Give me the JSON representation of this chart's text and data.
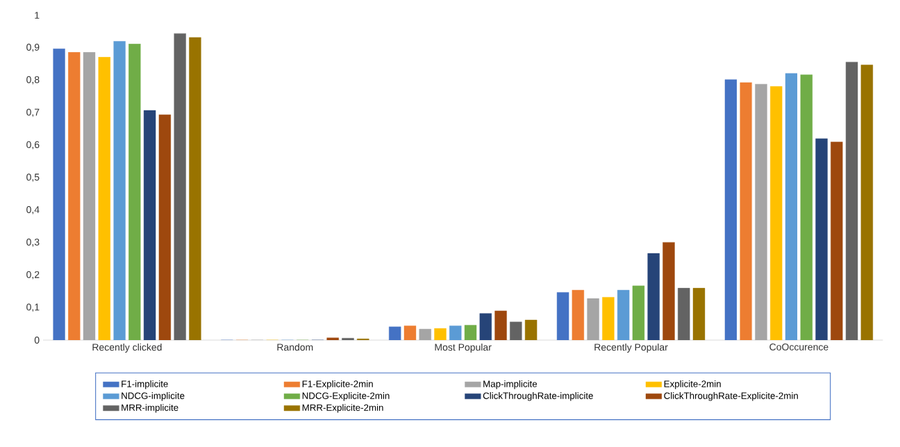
{
  "chart_data": {
    "type": "bar",
    "categories": [
      "Recently clicked",
      "Random",
      "Most Popular",
      "Recently Popular",
      "CoOccurence"
    ],
    "series": [
      {
        "name": "F1-implicite",
        "color": "#4472c4",
        "values": [
          0.897,
          0,
          0.041,
          0.147,
          0.802
        ]
      },
      {
        "name": "F1-Explicite-2min",
        "color": "#ed7d31",
        "values": [
          0.886,
          0,
          0.044,
          0.154,
          0.793
        ]
      },
      {
        "name": "Map-implicite",
        "color": "#a5a5a5",
        "values": [
          0.886,
          0,
          0.034,
          0.128,
          0.788
        ]
      },
      {
        "name": "Explicite-2min",
        "color": "#ffc000",
        "values": [
          0.871,
          0,
          0.036,
          0.132,
          0.781
        ]
      },
      {
        "name": "NDCG-implicite",
        "color": "#5b9bd5",
        "values": [
          0.92,
          0,
          0.044,
          0.154,
          0.821
        ]
      },
      {
        "name": "NDCG-Explicite-2min",
        "color": "#70ad47",
        "values": [
          0.912,
          0,
          0.046,
          0.167,
          0.817
        ]
      },
      {
        "name": "ClickThroughRate-implicite",
        "color": "#264478",
        "values": [
          0.707,
          0,
          0.082,
          0.267,
          0.62
        ]
      },
      {
        "name": "ClickThroughRate-Explicite-2min",
        "color": "#9e480e",
        "values": [
          0.694,
          0.007,
          0.09,
          0.301,
          0.61
        ]
      },
      {
        "name": "MRR-implicite",
        "color": "#636363",
        "values": [
          0.944,
          0.006,
          0.056,
          0.16,
          0.856
        ]
      },
      {
        "name": "MRR-Explicite-2min",
        "color": "#997300",
        "values": [
          0.932,
          0.004,
          0.062,
          0.16,
          0.847
        ]
      }
    ],
    "ylim": [
      0,
      1
    ],
    "yticks": [
      0,
      {
        "value": 0.1,
        "label": "0,1"
      },
      {
        "value": 0.2,
        "label": "0,2"
      },
      {
        "value": 0.3,
        "label": "0,3"
      },
      {
        "value": 0.4,
        "label": "0,4"
      },
      {
        "value": 0.5,
        "label": "0,5"
      },
      {
        "value": 0.6,
        "label": "0,6"
      },
      {
        "value": 0.7,
        "label": "0,7"
      },
      {
        "value": 0.8,
        "label": "0,8"
      },
      {
        "value": 0.9,
        "label": "0,9"
      },
      1
    ],
    "legend": "bottom"
  }
}
